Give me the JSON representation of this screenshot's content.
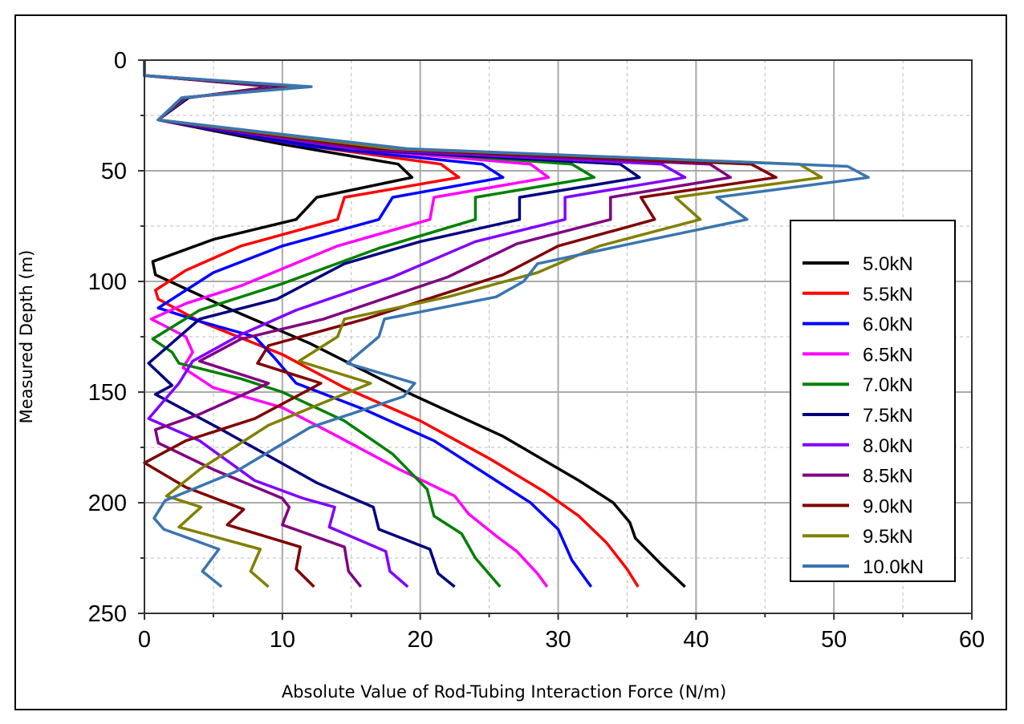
{
  "chart_data": {
    "type": "line",
    "title": "",
    "xlabel": "Absolute Value of Rod-Tubing Interaction Force (N/m)",
    "ylabel": "Measured Depth (m)",
    "xlim": [
      0,
      60
    ],
    "ylim": [
      250,
      0
    ],
    "y_inverted": true,
    "xticks": [
      "0",
      "10",
      "20",
      "30",
      "40",
      "50",
      "60"
    ],
    "yticks": [
      "0",
      "50",
      "100",
      "150",
      "200",
      "250"
    ],
    "grid": true,
    "legend_position": "right",
    "point_format": "[force N/m, depth m]",
    "series": [
      {
        "name": "5.0kN",
        "color": "#000000",
        "points": [
          [
            0,
            0
          ],
          [
            0,
            7
          ],
          [
            9.3,
            12
          ],
          [
            3.2,
            17
          ],
          [
            1,
            27
          ],
          [
            10,
            38
          ],
          [
            18.4,
            47
          ],
          [
            19.4,
            53
          ],
          [
            12.5,
            62
          ],
          [
            11,
            72
          ],
          [
            5,
            81
          ],
          [
            0.6,
            91
          ],
          [
            0.8,
            97
          ],
          [
            6,
            112
          ],
          [
            12,
            128
          ],
          [
            19,
            150
          ],
          [
            26,
            170
          ],
          [
            31.5,
            190
          ],
          [
            34,
            200
          ],
          [
            35.2,
            209
          ],
          [
            35.6,
            216
          ],
          [
            37.5,
            228
          ],
          [
            39.2,
            238
          ]
        ]
      },
      {
        "name": "5.5kN",
        "color": "#ff0000",
        "points": [
          [
            0,
            0
          ],
          [
            0,
            7
          ],
          [
            9.6,
            12
          ],
          [
            3.1,
            17
          ],
          [
            1,
            27
          ],
          [
            11,
            38
          ],
          [
            21.5,
            47
          ],
          [
            22.8,
            53
          ],
          [
            14.5,
            62
          ],
          [
            14,
            72
          ],
          [
            7,
            84
          ],
          [
            3,
            95
          ],
          [
            0.8,
            104
          ],
          [
            1,
            108
          ],
          [
            4,
            118
          ],
          [
            10,
            133
          ],
          [
            14.5,
            148
          ],
          [
            20,
            163
          ],
          [
            25,
            180
          ],
          [
            29,
            195
          ],
          [
            31.5,
            206
          ],
          [
            33.5,
            218
          ],
          [
            35,
            230
          ],
          [
            35.8,
            238
          ]
        ]
      },
      {
        "name": "6.0kN",
        "color": "#0000ff",
        "points": [
          [
            0,
            0
          ],
          [
            0,
            7
          ],
          [
            9.9,
            12
          ],
          [
            3.1,
            17
          ],
          [
            1,
            27
          ],
          [
            12,
            39
          ],
          [
            24.5,
            47
          ],
          [
            26,
            53
          ],
          [
            18,
            62
          ],
          [
            17,
            72
          ],
          [
            10,
            84
          ],
          [
            5,
            96
          ],
          [
            1,
            112
          ],
          [
            4,
            118
          ],
          [
            8,
            125
          ],
          [
            9.5,
            135
          ],
          [
            11,
            146
          ],
          [
            16,
            158
          ],
          [
            21,
            172
          ],
          [
            25.5,
            190
          ],
          [
            28,
            200
          ],
          [
            30,
            212
          ],
          [
            31,
            226
          ],
          [
            32.4,
            238
          ]
        ]
      },
      {
        "name": "6.5kN",
        "color": "#ff00ff",
        "points": [
          [
            0,
            0
          ],
          [
            0,
            7
          ],
          [
            10.2,
            12
          ],
          [
            3,
            17
          ],
          [
            1,
            27
          ],
          [
            13,
            39
          ],
          [
            28,
            47
          ],
          [
            29.3,
            53
          ],
          [
            21,
            62
          ],
          [
            20.7,
            72
          ],
          [
            14,
            84
          ],
          [
            7,
            102
          ],
          [
            3,
            110
          ],
          [
            0.5,
            117
          ],
          [
            3,
            125
          ],
          [
            3.5,
            132
          ],
          [
            2.8,
            139
          ],
          [
            5,
            148
          ],
          [
            10,
            157
          ],
          [
            14,
            170
          ],
          [
            18.5,
            185
          ],
          [
            22.5,
            197
          ],
          [
            23.5,
            205
          ],
          [
            25.5,
            215
          ],
          [
            27,
            222
          ],
          [
            28.5,
            232
          ],
          [
            29.2,
            238
          ]
        ]
      },
      {
        "name": "7.0kN",
        "color": "#008000",
        "points": [
          [
            0,
            0
          ],
          [
            0,
            7
          ],
          [
            10.4,
            12
          ],
          [
            3,
            17
          ],
          [
            1,
            27
          ],
          [
            13.5,
            39
          ],
          [
            31,
            47
          ],
          [
            32.6,
            53
          ],
          [
            24,
            62
          ],
          [
            24,
            72
          ],
          [
            17,
            85
          ],
          [
            10,
            101
          ],
          [
            4,
            113
          ],
          [
            0.6,
            126
          ],
          [
            2,
            132
          ],
          [
            2.5,
            137
          ],
          [
            7,
            144
          ],
          [
            10,
            150
          ],
          [
            14.5,
            163
          ],
          [
            18,
            178
          ],
          [
            20.5,
            194
          ],
          [
            21,
            206
          ],
          [
            23,
            214
          ],
          [
            24,
            225
          ],
          [
            25.8,
            238
          ]
        ]
      },
      {
        "name": "7.5kN",
        "color": "#000080",
        "points": [
          [
            0,
            0
          ],
          [
            0,
            7
          ],
          [
            10.7,
            12
          ],
          [
            2.9,
            17
          ],
          [
            1,
            27
          ],
          [
            14,
            40
          ],
          [
            34.5,
            47
          ],
          [
            35.9,
            53
          ],
          [
            27.2,
            62
          ],
          [
            27.2,
            72
          ],
          [
            20,
            82
          ],
          [
            14.5,
            92
          ],
          [
            9.6,
            108
          ],
          [
            4,
            117
          ],
          [
            0.3,
            137
          ],
          [
            2,
            147
          ],
          [
            0.8,
            151
          ],
          [
            5.6,
            167
          ],
          [
            12.5,
            191
          ],
          [
            16.6,
            202
          ],
          [
            17,
            212
          ],
          [
            20.7,
            221
          ],
          [
            21.3,
            232
          ],
          [
            22.5,
            238
          ]
        ]
      },
      {
        "name": "8.0kN",
        "color": "#8000ff",
        "points": [
          [
            0,
            0
          ],
          [
            0,
            7
          ],
          [
            11,
            12
          ],
          [
            2.9,
            17
          ],
          [
            1,
            27
          ],
          [
            15,
            40
          ],
          [
            37.5,
            47
          ],
          [
            39.2,
            53
          ],
          [
            30.5,
            62
          ],
          [
            30.5,
            72
          ],
          [
            24,
            82
          ],
          [
            18,
            98
          ],
          [
            11,
            113
          ],
          [
            7,
            124
          ],
          [
            3.5,
            136
          ],
          [
            2.5,
            146
          ],
          [
            0.3,
            162
          ],
          [
            4,
            172
          ],
          [
            8,
            190
          ],
          [
            11.5,
            198
          ],
          [
            13.8,
            202
          ],
          [
            13.4,
            211
          ],
          [
            17.5,
            222
          ],
          [
            17.8,
            231
          ],
          [
            19.1,
            238
          ]
        ]
      },
      {
        "name": "8.5kN",
        "color": "#800080",
        "points": [
          [
            0,
            0
          ],
          [
            0,
            7
          ],
          [
            11.3,
            12
          ],
          [
            2.8,
            17
          ],
          [
            1,
            27
          ],
          [
            16,
            40
          ],
          [
            41,
            47
          ],
          [
            42.5,
            53
          ],
          [
            33.8,
            62
          ],
          [
            33.8,
            72
          ],
          [
            27,
            83
          ],
          [
            22,
            98
          ],
          [
            13,
            117
          ],
          [
            7,
            126
          ],
          [
            4,
            136
          ],
          [
            9,
            146
          ],
          [
            4,
            160
          ],
          [
            0.8,
            167
          ],
          [
            1,
            173
          ],
          [
            5,
            185
          ],
          [
            10,
            198
          ],
          [
            10.5,
            202
          ],
          [
            10,
            210
          ],
          [
            14.5,
            220
          ],
          [
            14.8,
            231
          ],
          [
            15.7,
            238
          ]
        ]
      },
      {
        "name": "9.0kN",
        "color": "#800000",
        "points": [
          [
            0,
            0
          ],
          [
            0,
            7
          ],
          [
            11.5,
            12
          ],
          [
            2.8,
            17
          ],
          [
            1,
            27
          ],
          [
            17,
            40
          ],
          [
            44,
            47
          ],
          [
            45.8,
            53
          ],
          [
            36,
            62
          ],
          [
            37,
            72
          ],
          [
            30,
            84
          ],
          [
            26,
            97
          ],
          [
            16,
            117
          ],
          [
            9,
            129
          ],
          [
            8.2,
            137
          ],
          [
            12.8,
            146
          ],
          [
            8,
            162
          ],
          [
            3,
            172
          ],
          [
            0,
            182
          ],
          [
            3,
            193
          ],
          [
            7.2,
            203
          ],
          [
            6,
            210
          ],
          [
            11.3,
            220
          ],
          [
            11,
            230
          ],
          [
            12.3,
            238
          ]
        ]
      },
      {
        "name": "9.5kN",
        "color": "#808000",
        "points": [
          [
            0,
            0
          ],
          [
            0,
            7
          ],
          [
            11.8,
            12
          ],
          [
            2.7,
            17
          ],
          [
            1,
            27
          ],
          [
            18,
            40
          ],
          [
            47.5,
            47
          ],
          [
            49.1,
            53
          ],
          [
            38.5,
            62
          ],
          [
            40.3,
            72
          ],
          [
            33,
            84
          ],
          [
            28.5,
            96
          ],
          [
            22,
            107
          ],
          [
            14.5,
            117
          ],
          [
            14,
            125
          ],
          [
            11.2,
            136
          ],
          [
            16.4,
            146
          ],
          [
            9,
            165
          ],
          [
            4,
            185
          ],
          [
            1.6,
            197
          ],
          [
            4.1,
            202
          ],
          [
            2.5,
            211
          ],
          [
            8.4,
            221
          ],
          [
            7.7,
            231
          ],
          [
            9,
            238
          ]
        ]
      },
      {
        "name": "10.0kN",
        "color": "#3a75b0",
        "points": [
          [
            0,
            0
          ],
          [
            0,
            7
          ],
          [
            12.1,
            12
          ],
          [
            2.7,
            17
          ],
          [
            1,
            27
          ],
          [
            19,
            40
          ],
          [
            51,
            48
          ],
          [
            52.5,
            53
          ],
          [
            41.5,
            62
          ],
          [
            43.7,
            72
          ],
          [
            36,
            82
          ],
          [
            28.5,
            92
          ],
          [
            27.5,
            100
          ],
          [
            25.5,
            107
          ],
          [
            17.4,
            117
          ],
          [
            17,
            125
          ],
          [
            14.7,
            137
          ],
          [
            19.6,
            146
          ],
          [
            18.8,
            152
          ],
          [
            12,
            166
          ],
          [
            6.6,
            186
          ],
          [
            1.5,
            199
          ],
          [
            0.7,
            207
          ],
          [
            1.4,
            212
          ],
          [
            5.4,
            221
          ],
          [
            4.2,
            231
          ],
          [
            5.6,
            238
          ]
        ]
      }
    ]
  }
}
